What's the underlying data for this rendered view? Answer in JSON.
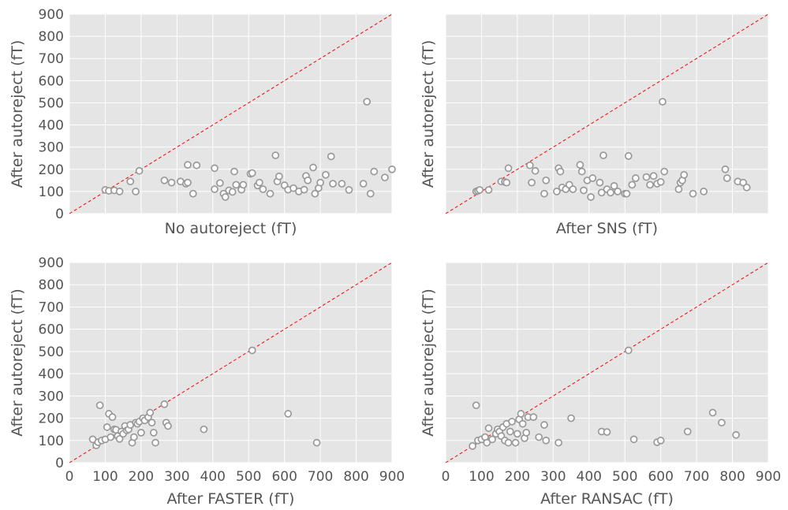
{
  "chart_data": [
    {
      "type": "scatter",
      "xlabel": "No autoreject (fT)",
      "ylabel": "After autoreject (fT)",
      "xlim": [
        0,
        900
      ],
      "ylim": [
        0,
        900
      ],
      "xticks": [
        "0",
        "100",
        "200",
        "300",
        "400",
        "500",
        "600",
        "700",
        "800",
        "900"
      ],
      "yticks": [
        "0",
        "100",
        "200",
        "300",
        "400",
        "500",
        "600",
        "700",
        "800",
        "900"
      ],
      "show_xticklabels": false,
      "show_yticklabels": true,
      "grid": true,
      "diagonal": "y = x (red dashed)",
      "points": [
        [
          100,
          107
        ],
        [
          110,
          103
        ],
        [
          125,
          105
        ],
        [
          140,
          100
        ],
        [
          170,
          145
        ],
        [
          185,
          100
        ],
        [
          195,
          193
        ],
        [
          265,
          150
        ],
        [
          285,
          140
        ],
        [
          310,
          145
        ],
        [
          325,
          135
        ],
        [
          330,
          140
        ],
        [
          330,
          220
        ],
        [
          345,
          90
        ],
        [
          355,
          218
        ],
        [
          405,
          110
        ],
        [
          405,
          205
        ],
        [
          420,
          138
        ],
        [
          430,
          90
        ],
        [
          435,
          75
        ],
        [
          445,
          105
        ],
        [
          455,
          98
        ],
        [
          460,
          190
        ],
        [
          465,
          130
        ],
        [
          480,
          108
        ],
        [
          485,
          130
        ],
        [
          505,
          180
        ],
        [
          510,
          183
        ],
        [
          525,
          127
        ],
        [
          530,
          140
        ],
        [
          540,
          110
        ],
        [
          560,
          90
        ],
        [
          575,
          263
        ],
        [
          580,
          145
        ],
        [
          585,
          168
        ],
        [
          600,
          128
        ],
        [
          610,
          108
        ],
        [
          625,
          115
        ],
        [
          640,
          100
        ],
        [
          655,
          108
        ],
        [
          660,
          170
        ],
        [
          665,
          150
        ],
        [
          680,
          208
        ],
        [
          685,
          90
        ],
        [
          695,
          115
        ],
        [
          700,
          140
        ],
        [
          715,
          175
        ],
        [
          730,
          258
        ],
        [
          735,
          135
        ],
        [
          760,
          135
        ],
        [
          780,
          107
        ],
        [
          820,
          135
        ],
        [
          830,
          505
        ],
        [
          840,
          90
        ],
        [
          850,
          190
        ],
        [
          880,
          163
        ],
        [
          900,
          200
        ]
      ]
    },
    {
      "type": "scatter",
      "xlabel": "After SNS (fT)",
      "ylabel": "After autoreject (fT)",
      "xlim": [
        0,
        900
      ],
      "ylim": [
        0,
        900
      ],
      "xticks": [
        "0",
        "100",
        "200",
        "300",
        "400",
        "500",
        "600",
        "700",
        "800",
        "900"
      ],
      "yticks": [
        "0",
        "100",
        "200",
        "300",
        "400",
        "500",
        "600",
        "700",
        "800",
        "900"
      ],
      "show_xticklabels": false,
      "show_yticklabels": false,
      "grid": true,
      "diagonal": "y = x (red dashed)",
      "points": [
        [
          85,
          100
        ],
        [
          90,
          103
        ],
        [
          95,
          107
        ],
        [
          120,
          107
        ],
        [
          155,
          145
        ],
        [
          165,
          143
        ],
        [
          170,
          140
        ],
        [
          175,
          205
        ],
        [
          235,
          218
        ],
        [
          240,
          140
        ],
        [
          250,
          193
        ],
        [
          275,
          90
        ],
        [
          280,
          150
        ],
        [
          310,
          100
        ],
        [
          315,
          205
        ],
        [
          320,
          190
        ],
        [
          325,
          118
        ],
        [
          335,
          110
        ],
        [
          345,
          130
        ],
        [
          355,
          110
        ],
        [
          375,
          220
        ],
        [
          380,
          190
        ],
        [
          385,
          105
        ],
        [
          395,
          150
        ],
        [
          405,
          75
        ],
        [
          410,
          160
        ],
        [
          430,
          140
        ],
        [
          435,
          95
        ],
        [
          440,
          263
        ],
        [
          450,
          110
        ],
        [
          460,
          95
        ],
        [
          470,
          125
        ],
        [
          480,
          100
        ],
        [
          500,
          90
        ],
        [
          505,
          90
        ],
        [
          510,
          260
        ],
        [
          520,
          130
        ],
        [
          530,
          160
        ],
        [
          560,
          165
        ],
        [
          570,
          130
        ],
        [
          580,
          170
        ],
        [
          590,
          135
        ],
        [
          600,
          143
        ],
        [
          605,
          505
        ],
        [
          610,
          190
        ],
        [
          650,
          110
        ],
        [
          655,
          140
        ],
        [
          660,
          150
        ],
        [
          665,
          175
        ],
        [
          690,
          90
        ],
        [
          720,
          100
        ],
        [
          780,
          200
        ],
        [
          785,
          160
        ],
        [
          815,
          145
        ],
        [
          830,
          140
        ],
        [
          840,
          118
        ]
      ]
    },
    {
      "type": "scatter",
      "xlabel": "After FASTER (fT)",
      "ylabel": "After autoreject (fT)",
      "xlim": [
        0,
        900
      ],
      "ylim": [
        0,
        900
      ],
      "xticks": [
        "0",
        "100",
        "200",
        "300",
        "400",
        "500",
        "600",
        "700",
        "800",
        "900"
      ],
      "yticks": [
        "0",
        "100",
        "200",
        "300",
        "400",
        "500",
        "600",
        "700",
        "800",
        "900"
      ],
      "show_xticklabels": true,
      "show_yticklabels": true,
      "grid": true,
      "diagonal": "y = x (red dashed)",
      "points": [
        [
          65,
          105
        ],
        [
          75,
          78
        ],
        [
          80,
          92
        ],
        [
          85,
          258
        ],
        [
          90,
          100
        ],
        [
          100,
          105
        ],
        [
          105,
          160
        ],
        [
          110,
          220
        ],
        [
          115,
          115
        ],
        [
          120,
          205
        ],
        [
          125,
          150
        ],
        [
          130,
          148
        ],
        [
          135,
          120
        ],
        [
          140,
          107
        ],
        [
          145,
          140
        ],
        [
          150,
          130
        ],
        [
          155,
          165
        ],
        [
          160,
          145
        ],
        [
          165,
          150
        ],
        [
          170,
          170
        ],
        [
          175,
          90
        ],
        [
          180,
          115
        ],
        [
          185,
          180
        ],
        [
          190,
          175
        ],
        [
          195,
          185
        ],
        [
          200,
          135
        ],
        [
          205,
          200
        ],
        [
          210,
          190
        ],
        [
          220,
          205
        ],
        [
          225,
          225
        ],
        [
          230,
          180
        ],
        [
          235,
          135
        ],
        [
          240,
          90
        ],
        [
          265,
          263
        ],
        [
          270,
          180
        ],
        [
          275,
          165
        ],
        [
          375,
          150
        ],
        [
          510,
          505
        ],
        [
          610,
          220
        ],
        [
          690,
          90
        ]
      ]
    },
    {
      "type": "scatter",
      "xlabel": "After RANSAC (fT)",
      "ylabel": "After autoreject (fT)",
      "xlim": [
        0,
        900
      ],
      "ylim": [
        0,
        900
      ],
      "xticks": [
        "0",
        "100",
        "200",
        "300",
        "400",
        "500",
        "600",
        "700",
        "800",
        "900"
      ],
      "yticks": [
        "0",
        "100",
        "200",
        "300",
        "400",
        "500",
        "600",
        "700",
        "800",
        "900"
      ],
      "show_xticklabels": true,
      "show_yticklabels": false,
      "grid": true,
      "diagonal": "y = x (red dashed)",
      "points": [
        [
          75,
          75
        ],
        [
          85,
          258
        ],
        [
          90,
          100
        ],
        [
          100,
          105
        ],
        [
          110,
          115
        ],
        [
          115,
          90
        ],
        [
          120,
          155
        ],
        [
          130,
          105
        ],
        [
          140,
          130
        ],
        [
          145,
          150
        ],
        [
          150,
          140
        ],
        [
          155,
          120
        ],
        [
          160,
          160
        ],
        [
          165,
          100
        ],
        [
          170,
          175
        ],
        [
          175,
          90
        ],
        [
          180,
          140
        ],
        [
          185,
          185
        ],
        [
          195,
          90
        ],
        [
          200,
          130
        ],
        [
          205,
          195
        ],
        [
          210,
          220
        ],
        [
          215,
          175
        ],
        [
          220,
          110
        ],
        [
          225,
          135
        ],
        [
          230,
          205
        ],
        [
          245,
          205
        ],
        [
          260,
          115
        ],
        [
          275,
          170
        ],
        [
          280,
          100
        ],
        [
          315,
          90
        ],
        [
          350,
          200
        ],
        [
          435,
          140
        ],
        [
          450,
          138
        ],
        [
          510,
          505
        ],
        [
          525,
          105
        ],
        [
          590,
          92
        ],
        [
          600,
          100
        ],
        [
          675,
          140
        ],
        [
          745,
          225
        ],
        [
          770,
          180
        ],
        [
          810,
          125
        ]
      ]
    }
  ]
}
